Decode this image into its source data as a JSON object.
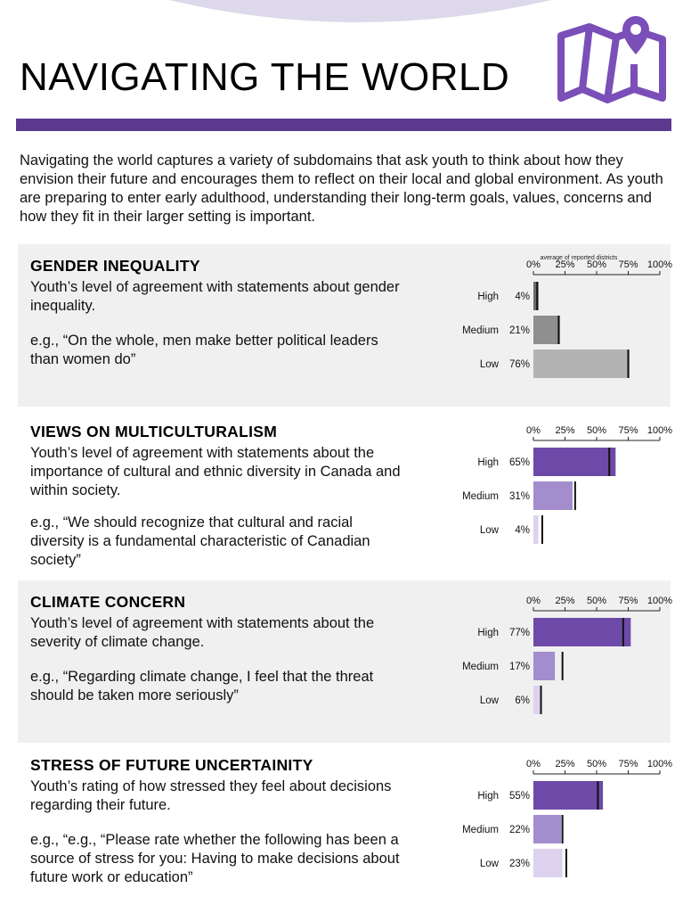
{
  "page": {
    "title": "NAVIGATING THE WORLD",
    "intro": "Navigating the world captures a variety of subdomains that ask youth to think about how they envision their future and encourages them to reflect on their local and global environment. As youth are preparing to enter early adulthood, understanding their long-term goals, values, concerns and how they fit in their larger setting is important.",
    "colors": {
      "rule": "#5b3a8e",
      "panel": "#f0f0f0",
      "arc": "#ddd9ea"
    },
    "icons": {
      "header": "map-pin-icon"
    }
  },
  "sections": [
    {
      "title": "GENDER INEQUALITY",
      "description": "Youth’s level of agreement with statements about gender inequality.",
      "example": "e.g., “On the whole, men make better political leaders than women do”"
    },
    {
      "title": "VIEWS ON MULTICULTURALISM",
      "description": "Youth’s level of agreement with statements about the importance of cultural and ethnic diversity in Canada and within society.",
      "example": "e.g., “We should recognize that cultural and racial diversity is a fundamental characteristic of Canadian society”"
    },
    {
      "title": "CLIMATE CONCERN",
      "description": "Youth’s level of agreement with statements about the severity of climate change.",
      "example": "e.g., “Regarding climate change, I feel that the threat should be taken more seriously”"
    },
    {
      "title": "STRESS OF FUTURE UNCERTAINITY",
      "description": "Youth’s rating of how stressed they feel about decisions regarding their future.",
      "example": "e.g., “e.g., “Please rate whether the following has been a source of stress for you: Having to make decisions about future work or education”"
    }
  ],
  "chart_data": [
    {
      "type": "bar",
      "orientation": "horizontal",
      "subtitle": "average of reported districts",
      "categories": [
        "High",
        "Medium",
        "Low"
      ],
      "values": [
        4,
        21,
        76
      ],
      "value_labels": [
        "4%",
        "21%",
        "76%"
      ],
      "markers": [
        3,
        20,
        75
      ],
      "colors": [
        "#6b6b6b",
        "#8f8f8f",
        "#b3b3b3"
      ],
      "xlim": [
        0,
        100
      ],
      "ticks": [
        "0%",
        "25%",
        "50%",
        "75%",
        "100%"
      ]
    },
    {
      "type": "bar",
      "orientation": "horizontal",
      "categories": [
        "High",
        "Medium",
        "Low"
      ],
      "values": [
        65,
        31,
        4
      ],
      "value_labels": [
        "65%",
        "31%",
        "4%"
      ],
      "markers": [
        60,
        33,
        7
      ],
      "colors": [
        "#6e4aa8",
        "#a48dcc",
        "#ddd3ee"
      ],
      "xlim": [
        0,
        100
      ],
      "ticks": [
        "0%",
        "25%",
        "50%",
        "75%",
        "100%"
      ]
    },
    {
      "type": "bar",
      "orientation": "horizontal",
      "categories": [
        "High",
        "Medium",
        "Low"
      ],
      "values": [
        77,
        17,
        6
      ],
      "value_labels": [
        "77%",
        "17%",
        "6%"
      ],
      "markers": [
        71,
        23,
        6
      ],
      "colors": [
        "#6e4aa8",
        "#a48dcc",
        "#ddd3ee"
      ],
      "xlim": [
        0,
        100
      ],
      "ticks": [
        "0%",
        "25%",
        "50%",
        "75%",
        "100%"
      ]
    },
    {
      "type": "bar",
      "orientation": "horizontal",
      "categories": [
        "High",
        "Medium",
        "Low"
      ],
      "values": [
        55,
        22,
        23
      ],
      "value_labels": [
        "55%",
        "22%",
        "23%"
      ],
      "markers": [
        51,
        23,
        26
      ],
      "colors": [
        "#6e4aa8",
        "#a48dcc",
        "#ddd3ee"
      ],
      "xlim": [
        0,
        100
      ],
      "ticks": [
        "0%",
        "25%",
        "50%",
        "75%",
        "100%"
      ]
    }
  ]
}
